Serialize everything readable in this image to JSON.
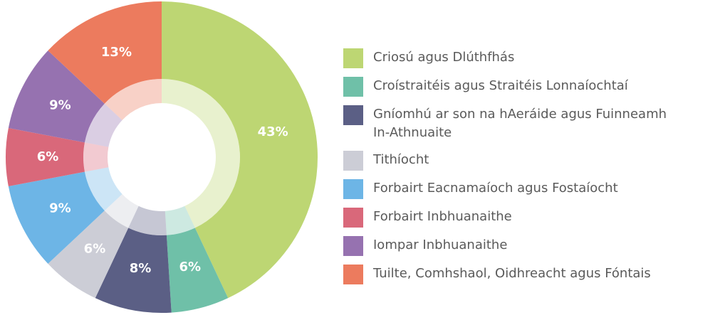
{
  "chart_data": {
    "type": "pie",
    "categories": [
      "Criosú agus Dlúthfhás",
      "Croístraitéis agus Straitéis Lonnaíochtaí",
      "Gníomhú ar son na hAeráide agus Fuinneamh In-Athnuaite",
      "Tithíocht",
      "Forbairt Eacnamaíoch agus Fostaíocht",
      "Forbairt Inbhuanaithe",
      "Iompar Inbhuanaithe",
      "Tuilte, Comhshaol, Oidhreacht agus Fóntais"
    ],
    "values": [
      43,
      6,
      8,
      6,
      9,
      6,
      9,
      13
    ],
    "value_labels": [
      "43%",
      "6%",
      "8%",
      "6%",
      "9%",
      "6%",
      "9%",
      "13%"
    ],
    "colors": [
      "#bdd673",
      "#6fc0a8",
      "#5b5f85",
      "#cccdd6",
      "#6db5e6",
      "#d9687a",
      "#9672b0",
      "#ec7b5e"
    ],
    "legend": "right"
  }
}
